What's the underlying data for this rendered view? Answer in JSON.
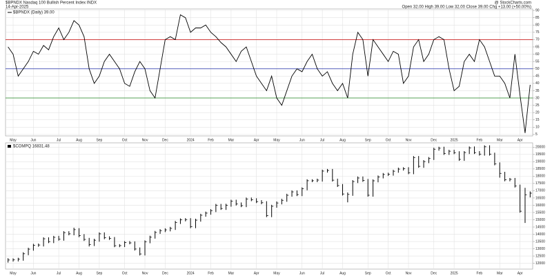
{
  "chart_data": [
    {
      "type": "line",
      "title": "$BPNDX Nasdaq 100 Bullish Percent Index INDX",
      "date": "14-Apr-2025",
      "source": "@ StockCharts.com",
      "stats": "Open 32.00 High 39.00 Low 32.00 Close 39.00 Chg +13.00 (+50.00%)",
      "legend_label": "$BPNDX (Daily) 39.00",
      "color": "#000000",
      "grid": true,
      "ylim": [
        4,
        91
      ],
      "yticks": [
        5,
        10,
        15,
        20,
        25,
        30,
        35,
        40,
        45,
        50,
        55,
        60,
        65,
        70,
        75,
        80,
        85,
        90
      ],
      "reference_lines": [
        {
          "value": 70,
          "color": "#cc2222"
        },
        {
          "value": 50,
          "color": "#2233aa"
        },
        {
          "value": 30,
          "color": "#228822"
        }
      ],
      "categories": [
        null,
        "May",
        null,
        null,
        null,
        "Jun",
        null,
        null,
        null,
        null,
        "Jul",
        null,
        null,
        null,
        "Aug",
        null,
        null,
        null,
        "Sep",
        null,
        null,
        null,
        null,
        "Oct",
        null,
        null,
        null,
        "Nov",
        null,
        null,
        null,
        "Dec",
        null,
        null,
        null,
        null,
        "2024",
        null,
        null,
        null,
        "Feb",
        null,
        null,
        null,
        "Mar",
        null,
        null,
        null,
        null,
        "Apr",
        null,
        null,
        null,
        "May",
        null,
        null,
        null,
        null,
        "Jun",
        null,
        null,
        null,
        "Jul",
        null,
        null,
        null,
        "Aug",
        null,
        null,
        null,
        null,
        "Sep",
        null,
        null,
        null,
        "Oct",
        null,
        null,
        null,
        "Nov",
        null,
        null,
        null,
        null,
        "Dec",
        null,
        null,
        null,
        "2025",
        null,
        null,
        null,
        null,
        "Feb",
        null,
        null,
        null,
        "Mar",
        null,
        null,
        null,
        "Apr",
        null,
        null
      ],
      "values": [
        65,
        60,
        45,
        50,
        55,
        62,
        60,
        66,
        63,
        72,
        78,
        70,
        75,
        83,
        80,
        72,
        50,
        40,
        45,
        55,
        60,
        55,
        50,
        40,
        38,
        48,
        55,
        50,
        35,
        30,
        50,
        70,
        72,
        70,
        87,
        85,
        75,
        78,
        78,
        80,
        75,
        72,
        68,
        65,
        60,
        55,
        62,
        65,
        55,
        45,
        40,
        35,
        45,
        30,
        25,
        35,
        45,
        50,
        48,
        55,
        60,
        50,
        45,
        48,
        40,
        35,
        40,
        30,
        60,
        75,
        70,
        45,
        70,
        65,
        60,
        55,
        62,
        60,
        40,
        45,
        65,
        70,
        55,
        60,
        70,
        72,
        70,
        50,
        35,
        38,
        55,
        60,
        55,
        70,
        65,
        55,
        45,
        45,
        40,
        30,
        60,
        32,
        6,
        39
      ]
    },
    {
      "type": "ohlc",
      "legend_label": "$COMPQ 16831.48",
      "color": "#000000",
      "grid": true,
      "ylim": [
        11600,
        20300
      ],
      "yticks": [
        12000,
        12500,
        13000,
        13500,
        14000,
        14500,
        15000,
        15500,
        16000,
        16500,
        17000,
        17500,
        18000,
        18500,
        19000,
        19500,
        20000
      ],
      "categories": [
        null,
        "May",
        null,
        null,
        null,
        "Jun",
        null,
        null,
        null,
        null,
        "Jul",
        null,
        null,
        null,
        "Aug",
        null,
        null,
        null,
        "Sep",
        null,
        null,
        null,
        null,
        "Oct",
        null,
        null,
        null,
        "Nov",
        null,
        null,
        null,
        "Dec",
        null,
        null,
        null,
        null,
        "2024",
        null,
        null,
        null,
        "Feb",
        null,
        null,
        null,
        "Mar",
        null,
        null,
        null,
        null,
        "Apr",
        null,
        null,
        null,
        "May",
        null,
        null,
        null,
        null,
        "Jun",
        null,
        null,
        null,
        "Jul",
        null,
        null,
        null,
        "Aug",
        null,
        null,
        null,
        null,
        "Sep",
        null,
        null,
        null,
        "Oct",
        null,
        null,
        null,
        "Nov",
        null,
        null,
        null,
        null,
        "Dec",
        null,
        null,
        null,
        "2025",
        null,
        null,
        null,
        null,
        "Feb",
        null,
        null,
        null,
        "Mar",
        null,
        null,
        null,
        "Apr",
        null,
        null
      ],
      "close": [
        12226,
        12235,
        12284,
        12657,
        12975,
        13240,
        13259,
        13689,
        13492,
        13788,
        13660,
        14113,
        14032,
        14317,
        13909,
        13644,
        13290,
        13590,
        14031,
        13761,
        13708,
        13212,
        13219,
        13431,
        13407,
        12984,
        12643,
        13478,
        13798,
        14125,
        14250,
        14305,
        14404,
        14814,
        14992,
        15011,
        14524,
        14973,
        15311,
        15455,
        15629,
        15990,
        15776,
        15996,
        16275,
        16085,
        15973,
        16429,
        16379,
        16249,
        16175,
        15282,
        15928,
        16156,
        16341,
        16686,
        16921,
        16735,
        17133,
        17689,
        17690,
        17733,
        18353,
        18398,
        17727,
        17358,
        16776,
        16745,
        17631,
        17877,
        17714,
        16690,
        17684,
        17948,
        18119,
        18138,
        18343,
        18490,
        18518,
        18240,
        19287,
        18680,
        19004,
        19218,
        19860,
        19926,
        19573,
        19722,
        19622,
        19162,
        19630,
        19954,
        19627,
        19523,
        20027,
        19524,
        18847,
        18196,
        17754,
        17784,
        17323,
        15588,
        16724,
        16831
      ],
      "high": [
        12350,
        12340,
        12380,
        12760,
        13070,
        13340,
        13360,
        13790,
        13790,
        13890,
        13890,
        14210,
        14210,
        14450,
        14420,
        14010,
        13750,
        13690,
        14130,
        14130,
        13860,
        13810,
        13320,
        13530,
        13530,
        13510,
        13090,
        13580,
        13900,
        14230,
        14350,
        14410,
        14510,
        14920,
        15090,
        15110,
        15110,
        15070,
        15410,
        15560,
        15730,
        16090,
        16090,
        16100,
        16380,
        16380,
        16190,
        16530,
        16530,
        16480,
        16350,
        16280,
        16030,
        16260,
        16440,
        16790,
        17020,
        17020,
        17230,
        17790,
        17790,
        17830,
        18450,
        18500,
        18500,
        17830,
        17460,
        16880,
        17730,
        17980,
        17980,
        17810,
        17780,
        18050,
        18220,
        18240,
        18440,
        18590,
        18620,
        18620,
        19390,
        19390,
        19110,
        19320,
        19960,
        20030,
        20030,
        19820,
        19820,
        19720,
        19730,
        20050,
        20050,
        19730,
        20130,
        20130,
        19620,
        18950,
        18300,
        17880,
        17880,
        17420,
        17200,
        16950
      ],
      "low": [
        12050,
        12120,
        12130,
        12180,
        12560,
        12870,
        13140,
        13160,
        13390,
        13390,
        13560,
        13560,
        13930,
        13930,
        13800,
        13540,
        13160,
        13190,
        13490,
        13660,
        13610,
        13110,
        13110,
        13120,
        13310,
        12880,
        12540,
        12540,
        13380,
        13700,
        14030,
        14150,
        14200,
        14300,
        14710,
        14890,
        14420,
        14420,
        14870,
        15210,
        15350,
        15530,
        15680,
        15680,
        15900,
        15980,
        15870,
        15870,
        16280,
        16150,
        16070,
        15180,
        15180,
        15830,
        16060,
        16240,
        16590,
        16630,
        16630,
        17030,
        17590,
        17590,
        17630,
        18250,
        17630,
        17260,
        16670,
        16200,
        16650,
        17530,
        17610,
        16590,
        16590,
        17580,
        17850,
        18020,
        18040,
        18240,
        18390,
        18140,
        18140,
        18580,
        18580,
        18900,
        19120,
        19760,
        19470,
        19470,
        19520,
        19060,
        19060,
        19530,
        19530,
        19420,
        19420,
        19420,
        18750,
        17900,
        17650,
        17650,
        17220,
        15490,
        14780,
        16540
      ]
    }
  ]
}
